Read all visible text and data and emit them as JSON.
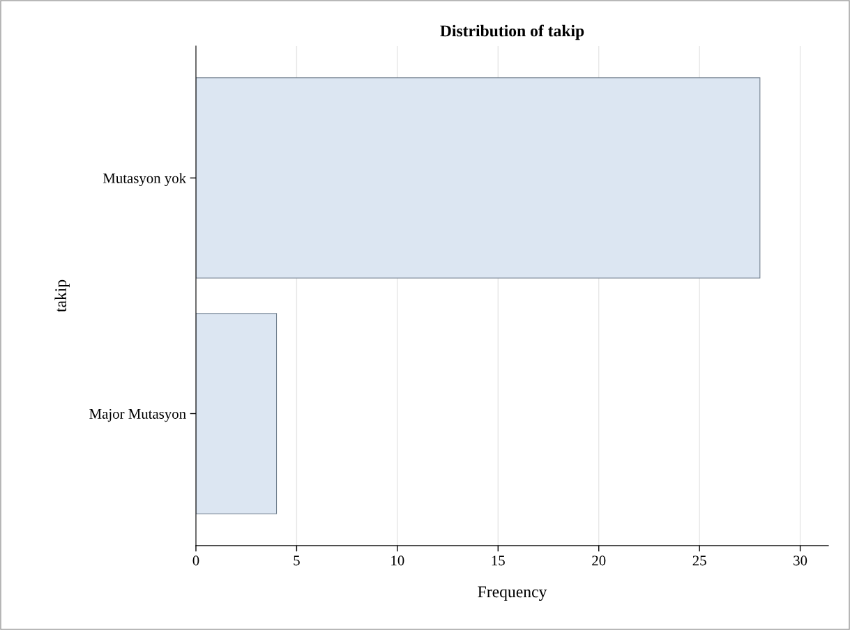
{
  "chart_data": {
    "type": "bar",
    "orientation": "horizontal",
    "title": "Distribution of takip",
    "xlabel": "Frequency",
    "ylabel": "takip",
    "categories": [
      "Mutasyon yok",
      "Major Mutasyon"
    ],
    "values": [
      28,
      4
    ],
    "color": "#dce6f2",
    "xlim": [
      0,
      31.4
    ],
    "xticks": [
      0,
      5,
      10,
      15,
      20,
      25,
      30
    ],
    "grid": "x",
    "legend": false
  }
}
